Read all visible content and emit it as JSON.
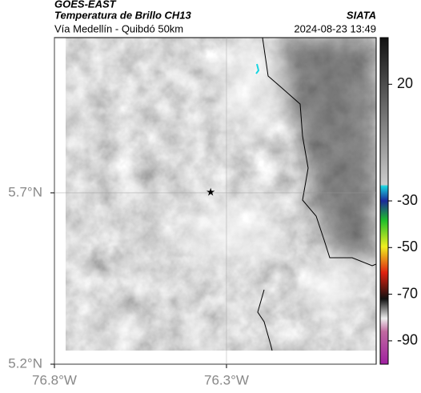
{
  "title": "GOES-EAST",
  "subtitle": "Temperatura de Brillo CH13",
  "caption": "Vía Medellín - Quibdó 50km",
  "source": "SIATA",
  "timestamp": "2024-08-23 13:49",
  "map": {
    "type": "map",
    "xlim": [
      -76.8,
      -75.865
    ],
    "ylim": [
      5.2,
      6.153
    ],
    "xticks": [
      {
        "value": -76.8,
        "label": "76.8°W"
      },
      {
        "value": -76.3,
        "label": "76.3°W"
      }
    ],
    "yticks": [
      {
        "value": 5.7,
        "label": "5.7°N"
      },
      {
        "value": 5.2,
        "label": "5.2°N"
      }
    ],
    "grid": true,
    "marker": {
      "lon": -76.346,
      "lat": 5.702
    }
  },
  "colorbar": {
    "lim": [
      40,
      -100
    ],
    "ticks": [
      20,
      -30,
      -50,
      -70,
      -90
    ]
  }
}
